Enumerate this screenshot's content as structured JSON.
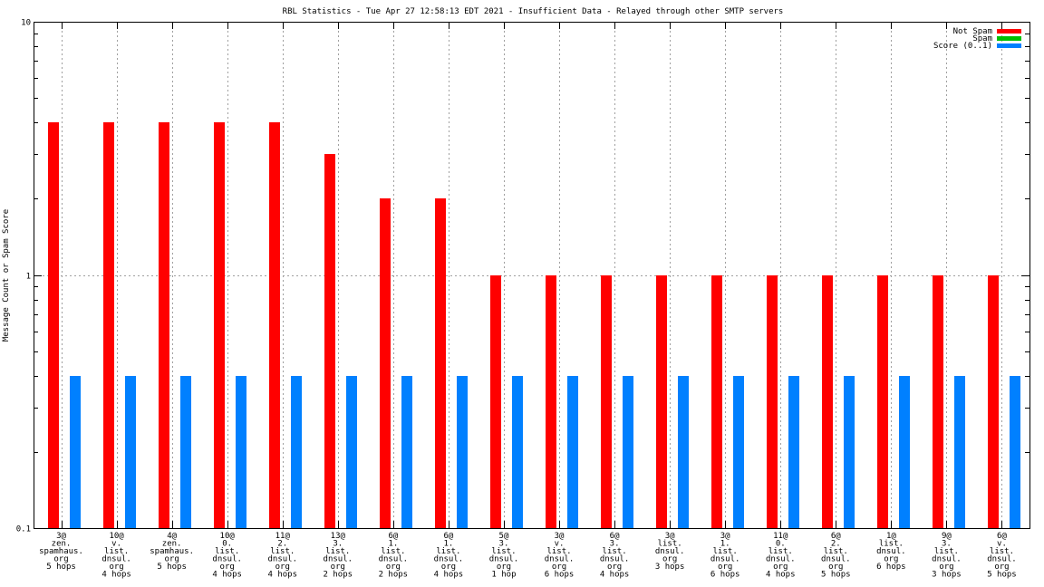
{
  "chart_data": {
    "type": "bar",
    "title": "RBL Statistics - Tue Apr 27 12:58:13 EDT 2021 - Insufficient Data - Relayed through other SMTP servers",
    "xlabel": "",
    "ylabel": "Message Count or Spam Score",
    "yscale": "log",
    "ylim": [
      0.1,
      10
    ],
    "yticks": [
      {
        "value": 0.1,
        "label": "0.1"
      },
      {
        "value": 1,
        "label": "1"
      },
      {
        "value": 10,
        "label": "10"
      }
    ],
    "grid": true,
    "legend_position": "top-right",
    "categories": [
      [
        "3@",
        "zen.",
        "spamhaus.",
        "org",
        "5 hops"
      ],
      [
        "10@",
        "v.",
        "list.",
        "dnsul.",
        "org",
        "4 hops"
      ],
      [
        "4@",
        "zen.",
        "spamhaus.",
        "org",
        "5 hops"
      ],
      [
        "10@",
        "0.",
        "list.",
        "dnsul.",
        "org",
        "4 hops"
      ],
      [
        "11@",
        "2.",
        "list.",
        "dnsul.",
        "org",
        "4 hops"
      ],
      [
        "13@",
        "3.",
        "list.",
        "dnsul.",
        "org",
        "2 hops"
      ],
      [
        "6@",
        "1.",
        "list.",
        "dnsul.",
        "org",
        "2 hops"
      ],
      [
        "6@",
        "1.",
        "list.",
        "dnsul.",
        "org",
        "4 hops"
      ],
      [
        "5@",
        "3.",
        "list.",
        "dnsul.",
        "org",
        "1 hop"
      ],
      [
        "3@",
        "v.",
        "list.",
        "dnsul.",
        "org",
        "6 hops"
      ],
      [
        "6@",
        "3.",
        "list.",
        "dnsul.",
        "org",
        "4 hops"
      ],
      [
        "3@",
        "list.",
        "dnsul.",
        "org",
        "3 hops"
      ],
      [
        "3@",
        "1.",
        "list.",
        "dnsul.",
        "org",
        "6 hops"
      ],
      [
        "11@",
        "0.",
        "list.",
        "dnsul.",
        "org",
        "4 hops"
      ],
      [
        "6@",
        "2.",
        "list.",
        "dnsul.",
        "org",
        "5 hops"
      ],
      [
        "1@",
        "list.",
        "dnsul.",
        "org",
        "6 hops"
      ],
      [
        "9@",
        "3.",
        "list.",
        "dnsul.",
        "org",
        "3 hops"
      ],
      [
        "6@",
        "v.",
        "list.",
        "dnsul.",
        "org",
        "5 hops"
      ]
    ],
    "series": [
      {
        "name": "Not Spam",
        "color": "#ff0000",
        "values": [
          4,
          4,
          4,
          4,
          4,
          3,
          2,
          2,
          1,
          1,
          1,
          1,
          1,
          1,
          1,
          1,
          1,
          1
        ]
      },
      {
        "name": "Spam",
        "color": "#00c000",
        "values": [
          null,
          null,
          null,
          null,
          null,
          null,
          null,
          null,
          null,
          null,
          null,
          null,
          null,
          null,
          null,
          null,
          null,
          null
        ]
      },
      {
        "name": "Score (0..1)",
        "color": "#0080ff",
        "values": [
          0.4,
          0.4,
          0.4,
          0.4,
          0.4,
          0.4,
          0.4,
          0.4,
          0.4,
          0.4,
          0.4,
          0.4,
          0.4,
          0.4,
          0.4,
          0.4,
          0.4,
          0.4
        ]
      }
    ]
  }
}
